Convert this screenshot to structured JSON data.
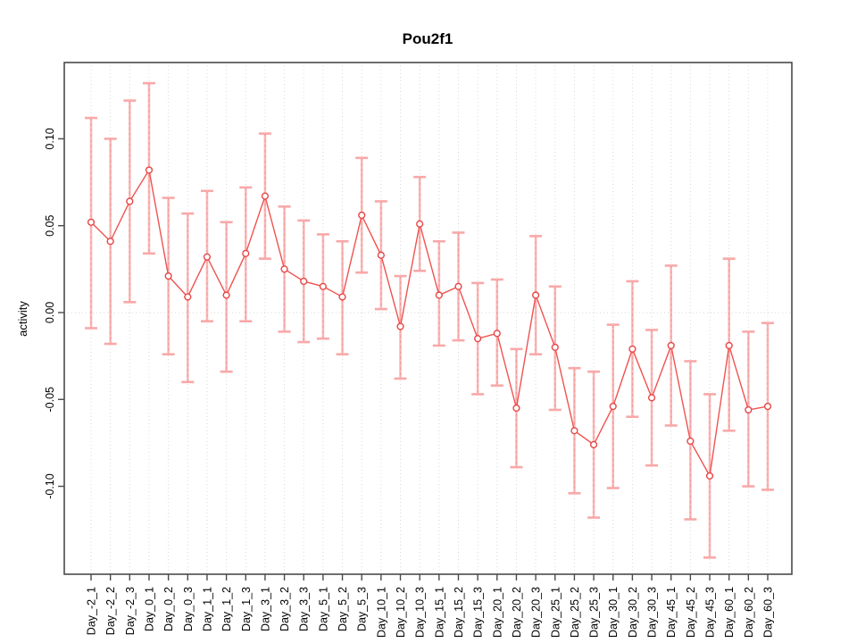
{
  "window": {
    "background": "#ffffff"
  },
  "chart_data": {
    "type": "line",
    "subtype": "points-with-error-bars",
    "title": "Pou2f1",
    "xlabel": "",
    "ylabel": "activity",
    "categories": [
      "Day_-2_1",
      "Day_-2_2",
      "Day_-2_3",
      "Day_0_1",
      "Day_0_2",
      "Day_0_3",
      "Day_1_1",
      "Day_1_2",
      "Day_1_3",
      "Day_3_1",
      "Day_3_2",
      "Day_3_3",
      "Day_5_1",
      "Day_5_2",
      "Day_5_3",
      "Day_10_1",
      "Day_10_2",
      "Day_10_3",
      "Day_15_1",
      "Day_15_2",
      "Day_15_3",
      "Day_20_1",
      "Day_20_2",
      "Day_20_3",
      "Day_25_1",
      "Day_25_2",
      "Day_25_3",
      "Day_30_1",
      "Day_30_2",
      "Day_30_3",
      "Day_45_1",
      "Day_45_2",
      "Day_45_3",
      "Day_60_1",
      "Day_60_2",
      "Day_60_3"
    ],
    "series": [
      {
        "name": "activity",
        "values": [
          0.052,
          0.041,
          0.064,
          0.082,
          0.021,
          0.009,
          0.032,
          0.01,
          0.034,
          0.067,
          0.025,
          0.018,
          0.015,
          0.009,
          0.056,
          0.033,
          -0.008,
          0.051,
          0.01,
          0.015,
          -0.015,
          -0.012,
          -0.055,
          0.01,
          -0.02,
          -0.068,
          -0.076,
          -0.054,
          -0.021,
          -0.049,
          -0.019,
          -0.074,
          -0.094,
          -0.019,
          -0.056,
          -0.054
        ],
        "upper": [
          0.112,
          0.1,
          0.122,
          0.132,
          0.066,
          0.057,
          0.07,
          0.052,
          0.072,
          0.103,
          0.061,
          0.053,
          0.045,
          0.041,
          0.089,
          0.064,
          0.021,
          0.078,
          0.041,
          0.046,
          0.017,
          0.019,
          -0.021,
          0.044,
          0.015,
          -0.032,
          -0.034,
          -0.007,
          0.018,
          -0.01,
          0.027,
          -0.028,
          -0.047,
          0.031,
          -0.011,
          -0.006
        ],
        "lower": [
          -0.009,
          -0.018,
          0.006,
          0.034,
          -0.024,
          -0.04,
          -0.005,
          -0.034,
          -0.005,
          0.031,
          -0.011,
          -0.017,
          -0.015,
          -0.024,
          0.023,
          0.002,
          -0.038,
          0.024,
          -0.019,
          -0.016,
          -0.047,
          -0.042,
          -0.089,
          -0.024,
          -0.056,
          -0.104,
          -0.118,
          -0.101,
          -0.06,
          -0.088,
          -0.065,
          -0.119,
          -0.141,
          -0.068,
          -0.1,
          -0.102
        ]
      }
    ],
    "yticks": [
      {
        "value": 0.1,
        "label": "0.10"
      },
      {
        "value": 0.05,
        "label": "0.05"
      },
      {
        "value": 0.0,
        "label": "0.00"
      },
      {
        "value": -0.05,
        "label": "-0.05"
      },
      {
        "value": -0.1,
        "label": "-0.10"
      }
    ],
    "ylim": [
      -0.1506,
      0.1439
    ],
    "grid": {
      "vertical_dotted": true,
      "zero_line_dotted": true
    },
    "legend": "none",
    "colors": {
      "point_stroke": "#e84545",
      "connector": "#ef5350",
      "error_bar_dash": "#e85050",
      "error_bar_solid": "#f9a8a8",
      "gridline": "#dadada",
      "zero_line": "#d6d6d6",
      "axis": "#4a4a4a"
    }
  }
}
